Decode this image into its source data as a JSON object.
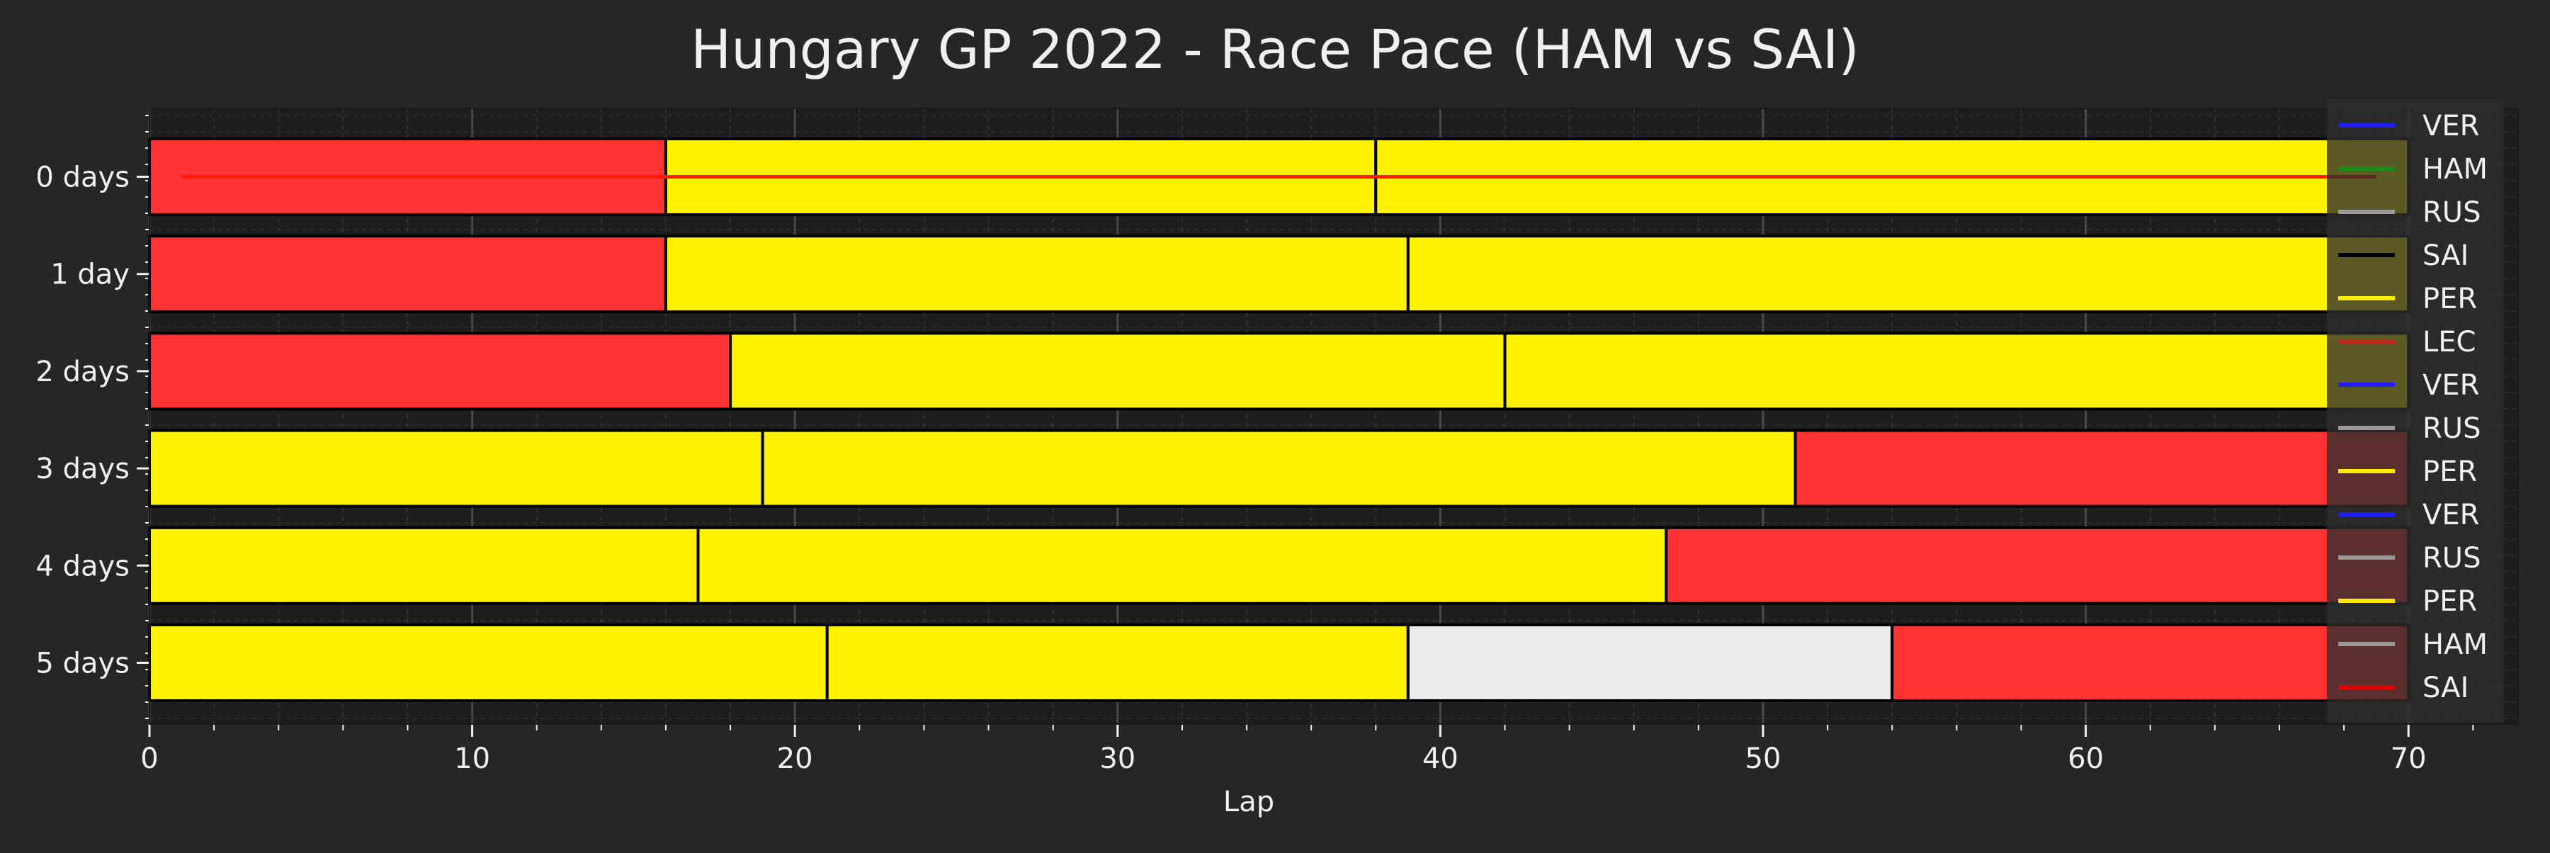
{
  "chart_data": {
    "type": "bar",
    "orientation": "horizontal-stacked",
    "title": "Hungary GP 2022 - Race Pace (HAM vs SAI)",
    "xlabel": "Lap",
    "ylabel": "",
    "xlim": [
      0,
      73
    ],
    "x_ticks": [
      0,
      10,
      20,
      30,
      40,
      50,
      60,
      70
    ],
    "grid": true,
    "legend_position": "right-edge",
    "categories": [
      "0 days",
      "1 day",
      "2 days",
      "3 days",
      "4 days",
      "5 days"
    ],
    "rows": [
      {
        "label": "0 days",
        "stints": [
          {
            "start": 0,
            "end": 16,
            "color": "#ff3333"
          },
          {
            "start": 16,
            "end": 38,
            "color": "#fff200"
          },
          {
            "start": 38,
            "end": 70,
            "color": "#fff200"
          }
        ]
      },
      {
        "label": "1 day",
        "stints": [
          {
            "start": 0,
            "end": 16,
            "color": "#ff3333"
          },
          {
            "start": 16,
            "end": 39,
            "color": "#fff200"
          },
          {
            "start": 39,
            "end": 70,
            "color": "#fff200"
          }
        ]
      },
      {
        "label": "2 days",
        "stints": [
          {
            "start": 0,
            "end": 18,
            "color": "#ff3333"
          },
          {
            "start": 18,
            "end": 42,
            "color": "#fff200"
          },
          {
            "start": 42,
            "end": 70,
            "color": "#fff200"
          }
        ]
      },
      {
        "label": "3 days",
        "stints": [
          {
            "start": 0,
            "end": 19,
            "color": "#fff200"
          },
          {
            "start": 19,
            "end": 51,
            "color": "#fff200"
          },
          {
            "start": 51,
            "end": 70,
            "color": "#ff3333"
          }
        ]
      },
      {
        "label": "4 days",
        "stints": [
          {
            "start": 0,
            "end": 17,
            "color": "#fff200"
          },
          {
            "start": 17,
            "end": 47,
            "color": "#fff200"
          },
          {
            "start": 47,
            "end": 70,
            "color": "#ff3333"
          }
        ]
      },
      {
        "label": "5 days",
        "stints": [
          {
            "start": 0,
            "end": 21,
            "color": "#fff200"
          },
          {
            "start": 21,
            "end": 39,
            "color": "#fff200"
          },
          {
            "start": 39,
            "end": 54,
            "color": "#ebebeb"
          },
          {
            "start": 54,
            "end": 70,
            "color": "#ff3333"
          }
        ]
      }
    ],
    "overlay_line": {
      "x": [
        1,
        69
      ],
      "row": "0 days",
      "color": "#ff1a00"
    },
    "legend": [
      {
        "label": "VER",
        "color": "#1f1fff"
      },
      {
        "label": "HAM",
        "color": "#1a8c1a"
      },
      {
        "label": "RUS",
        "color": "#9a9a9a"
      },
      {
        "label": "SAI",
        "color": "#000000"
      },
      {
        "label": "PER",
        "color": "#ffea00"
      },
      {
        "label": "LEC",
        "color": "#c0281c"
      },
      {
        "label": "VER",
        "color": "#1f1fff"
      },
      {
        "label": "RUS",
        "color": "#9a9a9a"
      },
      {
        "label": "PER",
        "color": "#ffea00"
      },
      {
        "label": "VER",
        "color": "#1f1fff"
      },
      {
        "label": "RUS",
        "color": "#9a9a9a"
      },
      {
        "label": "PER",
        "color": "#ffea00"
      },
      {
        "label": "HAM",
        "color": "#9a9a9a"
      },
      {
        "label": "SAI",
        "color": "#e00000"
      }
    ]
  },
  "colors": {
    "background": "#282625",
    "plot_background": "#1e1e1e",
    "text": "#f0f0f0",
    "grid": "#4a4a4a",
    "bar_edge": "#000000"
  }
}
